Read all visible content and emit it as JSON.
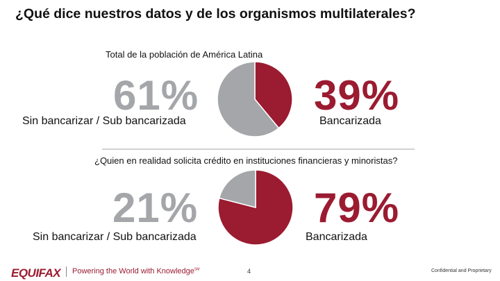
{
  "title": "¿Qué dice nuestros datos y de los organismos multilaterales?",
  "colors": {
    "red": "#9b1b30",
    "grey": "#a4a6a9",
    "divider": "#cfd1d3"
  },
  "chart_data": [
    {
      "type": "pie",
      "title": "Total de la población de América Latina",
      "labels": [
        "Bancarizada",
        "Sin bancarizar / Sub bancarizada"
      ],
      "values": [
        39,
        61
      ],
      "colors": [
        "#9b1b30",
        "#a4a6a9"
      ],
      "value_labels": [
        "39%",
        "61%"
      ]
    },
    {
      "type": "pie",
      "title": "¿Quien en realidad solicita crédito en instituciones financieras y minoristas?",
      "labels": [
        "Bancarizada",
        "Sin bancarizar / Sub bancarizada"
      ],
      "values": [
        79,
        21
      ],
      "colors": [
        "#9b1b30",
        "#a4a6a9"
      ],
      "value_labels": [
        "79%",
        "21%"
      ]
    }
  ],
  "footer": {
    "logo": "EQUIFAX",
    "tagline": "Powering the World with Knowledge",
    "trademark": "SM",
    "page_number": "4",
    "confidential": "Confidential and Proprietary"
  }
}
